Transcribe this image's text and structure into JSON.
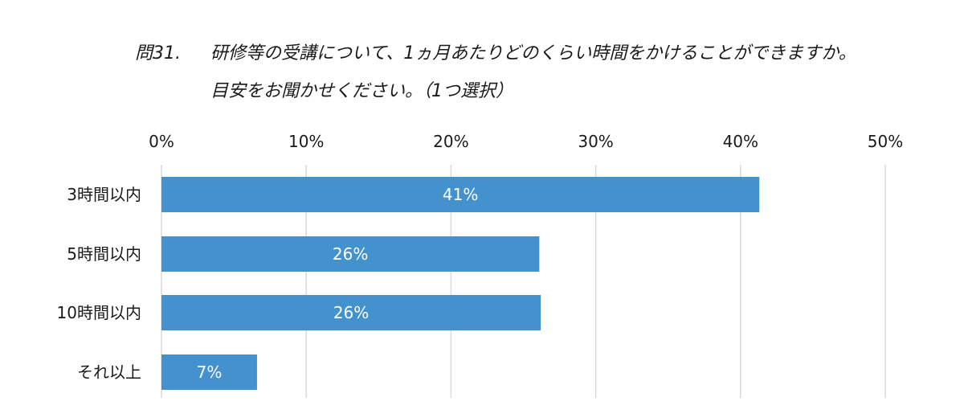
{
  "question": {
    "number": "問31.",
    "line1": "研修等の受講について、1ヵ月あたりどのくらい時間をかけることができますか。",
    "line2": "目安をお聞かせください。（1つ選択）"
  },
  "colors": {
    "bar": "#4392cd",
    "grid": "#d9d9d9",
    "label": "#ffffff"
  },
  "chart_data": {
    "type": "bar",
    "orientation": "horizontal",
    "categories": [
      "3時間以内",
      "5時間以内",
      "10時間以内",
      "それ以上"
    ],
    "values": [
      41.3,
      26.1,
      26.2,
      6.6
    ],
    "data_labels": [
      "41%",
      "26%",
      "26%",
      "7%"
    ],
    "xlim": [
      0,
      50
    ],
    "xticks": [
      0,
      10,
      20,
      30,
      40,
      50
    ],
    "xtick_labels": [
      "0%",
      "10%",
      "20%",
      "30%",
      "40%",
      "50%"
    ],
    "xaxis_position": "top",
    "grid": true,
    "legend": "none"
  }
}
